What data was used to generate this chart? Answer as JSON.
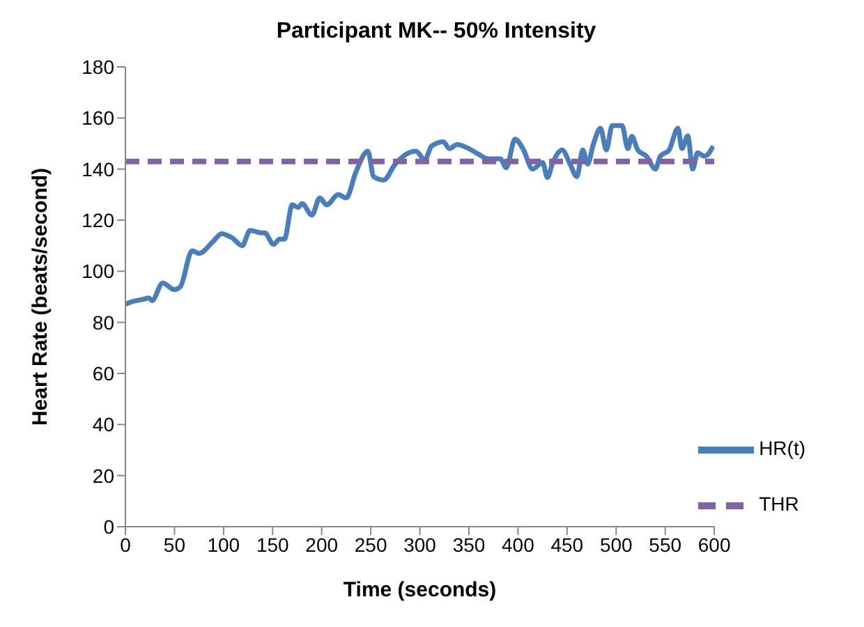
{
  "chart_data": {
    "type": "line",
    "title": "Participant MK-- 50% Intensity",
    "xlabel": "Time (seconds)",
    "ylabel": "Heart Rate (beats/second)",
    "xlim": [
      0,
      600
    ],
    "xticks": [
      0,
      50,
      100,
      150,
      200,
      250,
      300,
      350,
      400,
      450,
      500,
      550,
      600
    ],
    "ylim": [
      0,
      180
    ],
    "yticks": [
      0,
      20,
      40,
      60,
      80,
      100,
      120,
      140,
      160,
      180
    ],
    "legend": "bottom right",
    "marker": "none",
    "series": [
      {
        "name": "HR(t)",
        "color": "#4a7ebb",
        "line_style": "solid",
        "x": [
          0,
          2,
          18,
          24,
          27,
          38,
          50,
          56,
          68,
          75,
          89,
          98,
          109,
          119,
          127,
          139,
          142,
          151,
          157,
          162,
          170,
          176,
          180,
          190,
          198,
          205,
          217,
          225,
          235,
          247,
          253,
          263,
          275,
          287,
          296,
          305,
          312,
          324,
          330,
          338,
          350,
          359,
          370,
          382,
          388,
          397,
          405,
          415,
          425,
          430,
          435,
          445,
          453,
          460,
          466,
          471,
          477,
          484,
          490,
          496,
          506,
          512,
          516,
          522,
          531,
          540,
          545,
          554,
          563,
          567,
          573,
          578,
          583,
          590,
          599
        ],
        "values": [
          87,
          87.4,
          89,
          89.5,
          88.5,
          95.4,
          92.8,
          94,
          108,
          107,
          111.5,
          114.7,
          113,
          110,
          116,
          115,
          115,
          110.5,
          112.6,
          112.6,
          126,
          125,
          126.5,
          122,
          128.7,
          126,
          130,
          128.7,
          139,
          147,
          137,
          135.7,
          142,
          146,
          147,
          143.7,
          149,
          150.7,
          148,
          149.6,
          148,
          146,
          144,
          144,
          140.5,
          151.7,
          148,
          140,
          142.6,
          136.7,
          142,
          147.5,
          142,
          137,
          147.5,
          142,
          150,
          156,
          147.5,
          157,
          157,
          148,
          152.8,
          147.5,
          145,
          140,
          145,
          147.5,
          156,
          148,
          153,
          140,
          146.4,
          145,
          149
        ]
      },
      {
        "name": "THR",
        "color": "#8064a2",
        "line_style": "dashed",
        "x": [
          0,
          600
        ],
        "values": [
          143,
          143
        ]
      }
    ]
  }
}
